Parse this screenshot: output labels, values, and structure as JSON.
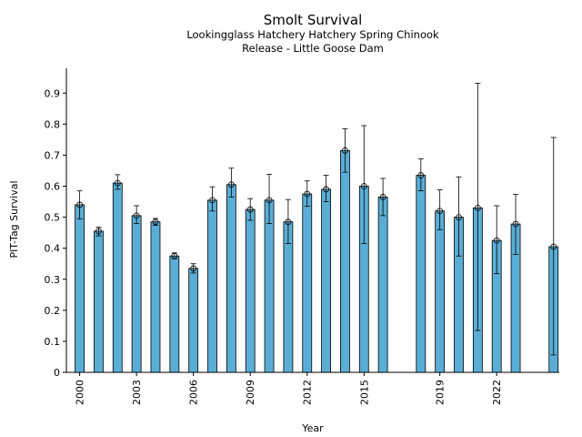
{
  "chart_data": {
    "type": "bar",
    "title": "Smolt Survival",
    "subtitle_lines": [
      "Lookingglass Hatchery Hatchery Spring Chinook",
      "Release - Little Goose Dam"
    ],
    "xlabel": "Year",
    "ylabel": "PIT-Tag Survival",
    "ylim": [
      0,
      0.98
    ],
    "yticks": [
      0,
      0.1,
      0.2,
      0.3,
      0.4,
      0.5,
      0.6,
      0.7,
      0.8,
      0.9
    ],
    "xticks": [
      2000,
      2003,
      2006,
      2009,
      2012,
      2015,
      2019,
      2022
    ],
    "xlim": [
      1999.3,
      2025.3
    ],
    "grid": false,
    "bar_color": "#5aaed6",
    "points": [
      {
        "year": 2000,
        "value": 0.54,
        "lower": 0.495,
        "upper": 0.585
      },
      {
        "year": 2001,
        "value": 0.455,
        "lower": 0.44,
        "upper": 0.468
      },
      {
        "year": 2002,
        "value": 0.61,
        "lower": 0.59,
        "upper": 0.637
      },
      {
        "year": 2003,
        "value": 0.505,
        "lower": 0.48,
        "upper": 0.537
      },
      {
        "year": 2004,
        "value": 0.485,
        "lower": 0.474,
        "upper": 0.496
      },
      {
        "year": 2005,
        "value": 0.375,
        "lower": 0.366,
        "upper": 0.385
      },
      {
        "year": 2006,
        "value": 0.335,
        "lower": 0.32,
        "upper": 0.35
      },
      {
        "year": 2007,
        "value": 0.555,
        "lower": 0.52,
        "upper": 0.598
      },
      {
        "year": 2008,
        "value": 0.605,
        "lower": 0.565,
        "upper": 0.658
      },
      {
        "year": 2009,
        "value": 0.525,
        "lower": 0.49,
        "upper": 0.56
      },
      {
        "year": 2010,
        "value": 0.555,
        "lower": 0.48,
        "upper": 0.638
      },
      {
        "year": 2011,
        "value": 0.485,
        "lower": 0.415,
        "upper": 0.557
      },
      {
        "year": 2012,
        "value": 0.575,
        "lower": 0.535,
        "upper": 0.617
      },
      {
        "year": 2013,
        "value": 0.59,
        "lower": 0.55,
        "upper": 0.635
      },
      {
        "year": 2014,
        "value": 0.715,
        "lower": 0.645,
        "upper": 0.785
      },
      {
        "year": 2015,
        "value": 0.6,
        "lower": 0.415,
        "upper": 0.795
      },
      {
        "year": 2016,
        "value": 0.565,
        "lower": 0.505,
        "upper": 0.625
      },
      {
        "year": 2018,
        "value": 0.635,
        "lower": 0.585,
        "upper": 0.688
      },
      {
        "year": 2019,
        "value": 0.52,
        "lower": 0.46,
        "upper": 0.588
      },
      {
        "year": 2020,
        "value": 0.5,
        "lower": 0.375,
        "upper": 0.63
      },
      {
        "year": 2021,
        "value": 0.53,
        "lower": 0.135,
        "upper": 0.932
      },
      {
        "year": 2022,
        "value": 0.425,
        "lower": 0.318,
        "upper": 0.537
      },
      {
        "year": 2023,
        "value": 0.478,
        "lower": 0.38,
        "upper": 0.574
      },
      {
        "year": 2025,
        "value": 0.405,
        "lower": 0.056,
        "upper": 0.757
      }
    ]
  }
}
